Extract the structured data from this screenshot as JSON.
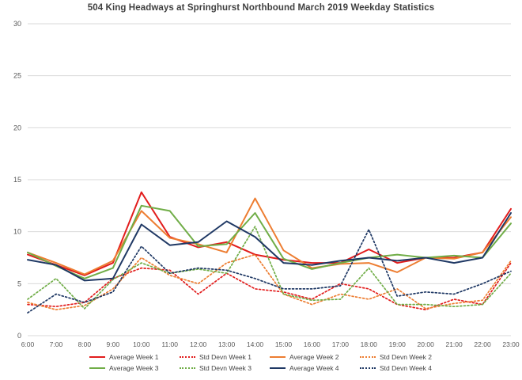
{
  "chart_data": {
    "type": "line",
    "title": "504 King Headways at Springhurst Northbound March 2019 Weekday Statistics",
    "categories": [
      "6:00",
      "7:00",
      "8:00",
      "9:00",
      "10:00",
      "11:00",
      "12:00",
      "13:00",
      "14:00",
      "15:00",
      "16:00",
      "17:00",
      "18:00",
      "19:00",
      "20:00",
      "21:00",
      "22:00",
      "23:00"
    ],
    "xlabel": "",
    "ylabel": "",
    "ylim": [
      0,
      30
    ],
    "ytick_step": 5,
    "grid": true,
    "legend_position": "bottom",
    "axis_color": "#595959",
    "grid_color": "#d9d9d9",
    "series": [
      {
        "name": "Average Week 1",
        "style": "solid",
        "color": "#e21d1d",
        "values": [
          7.8,
          6.8,
          5.8,
          7.0,
          13.8,
          9.5,
          8.5,
          9.0,
          7.8,
          7.3,
          7.0,
          7.0,
          8.3,
          7.0,
          7.5,
          7.5,
          8.0,
          12.2
        ]
      },
      {
        "name": "Std Devn Week 1",
        "style": "dotted",
        "color": "#e21d1d",
        "values": [
          3.0,
          2.8,
          3.2,
          5.5,
          6.5,
          6.3,
          4.0,
          6.0,
          4.5,
          4.2,
          3.5,
          5.0,
          4.5,
          3.0,
          2.5,
          3.5,
          3.0,
          7.0
        ]
      },
      {
        "name": "Average Week 2",
        "style": "solid",
        "color": "#ed7d31",
        "values": [
          8.0,
          7.0,
          5.9,
          7.2,
          12.0,
          9.4,
          8.8,
          8.0,
          13.2,
          8.2,
          6.5,
          6.9,
          7.0,
          6.1,
          7.5,
          7.4,
          8.0,
          11.4
        ]
      },
      {
        "name": "Std Devn Week 2",
        "style": "dotted",
        "color": "#ed7d31",
        "values": [
          3.2,
          2.5,
          2.9,
          4.5,
          7.5,
          5.8,
          5.0,
          7.0,
          7.8,
          4.0,
          3.0,
          4.0,
          3.5,
          4.5,
          2.6,
          3.1,
          3.4,
          7.2
        ]
      },
      {
        "name": "Average Week 3",
        "style": "solid",
        "color": "#70ad47",
        "values": [
          8.0,
          6.7,
          5.5,
          6.5,
          12.5,
          12.0,
          8.6,
          8.8,
          11.8,
          7.4,
          6.4,
          7.0,
          7.5,
          7.8,
          7.5,
          7.7,
          7.5,
          10.8
        ]
      },
      {
        "name": "Std Devn Week 3",
        "style": "dotted",
        "color": "#70ad47",
        "values": [
          3.5,
          5.5,
          2.6,
          5.4,
          7.0,
          6.0,
          6.4,
          6.0,
          10.5,
          4.0,
          3.4,
          3.5,
          6.5,
          3.0,
          3.0,
          2.8,
          3.0,
          6.0
        ]
      },
      {
        "name": "Average Week 4",
        "style": "solid",
        "color": "#1f3864",
        "values": [
          7.3,
          6.8,
          5.3,
          5.5,
          10.7,
          8.7,
          9.0,
          11.0,
          9.5,
          7.0,
          6.8,
          7.2,
          7.5,
          7.2,
          7.5,
          7.0,
          7.5,
          11.8
        ]
      },
      {
        "name": "Std Devn Week 4",
        "style": "dotted",
        "color": "#1f3864",
        "values": [
          2.2,
          4.0,
          3.2,
          4.2,
          8.6,
          6.0,
          6.5,
          6.3,
          5.5,
          4.5,
          4.5,
          4.8,
          10.2,
          3.8,
          4.2,
          4.0,
          5.0,
          6.2
        ]
      }
    ]
  }
}
